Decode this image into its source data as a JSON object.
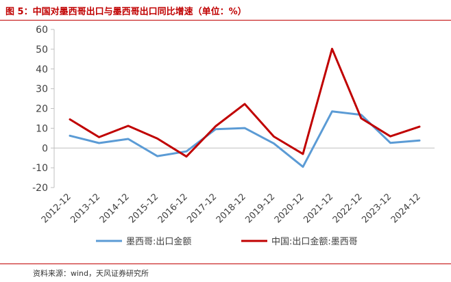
{
  "title": "图 5：中国对墨西哥出口与墨西哥出口同比增速（单位：%）",
  "source": "资料来源：wind，天风证券研究所",
  "colors": {
    "accent": "#c00000",
    "series_mexico": "#5b9bd5",
    "series_china": "#c00000",
    "axis": "#bfbfbf"
  },
  "chart_data": {
    "type": "line",
    "categories": [
      "2012-12",
      "2013-12",
      "2014-12",
      "2015-12",
      "2016-12",
      "2017-12",
      "2018-12",
      "2019-12",
      "2020-12",
      "2021-12",
      "2022-12",
      "2023-12",
      "2024-12"
    ],
    "yticks": [
      "60",
      "50",
      "40",
      "30",
      "20",
      "10",
      "0",
      "-10",
      "-20"
    ],
    "ylim": [
      -20,
      60
    ],
    "grid": false,
    "legend_position": "bottom",
    "series": [
      {
        "name": "墨西哥:出口金额",
        "color": "#5b9bd5",
        "values": [
          6.2,
          2.5,
          4.6,
          -4.1,
          -1.7,
          9.5,
          10.1,
          2.3,
          -9.5,
          18.5,
          16.8,
          2.6,
          3.8
        ]
      },
      {
        "name": "中国:出口金额:墨西哥",
        "color": "#c00000",
        "values": [
          14.5,
          5.5,
          11.2,
          4.8,
          -4.3,
          11.0,
          22.3,
          5.8,
          -3.0,
          50.2,
          15.0,
          5.9,
          10.8
        ]
      }
    ]
  }
}
